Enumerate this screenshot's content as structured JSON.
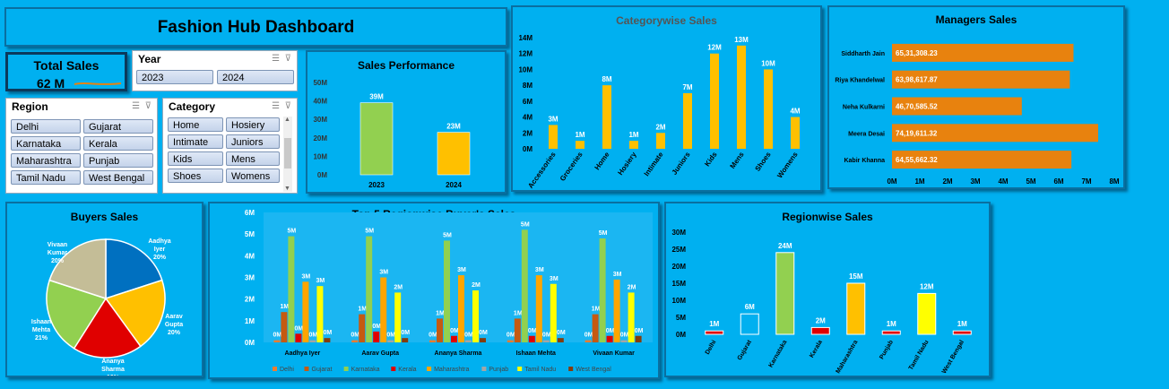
{
  "dashboard": {
    "title": "Fashion Hub Dashboard"
  },
  "kpi": {
    "label": "Total Sales",
    "value": "62 M"
  },
  "year_slicer": {
    "header": "Year",
    "items": [
      "2023",
      "2024"
    ]
  },
  "region_slicer": {
    "header": "Region",
    "items": [
      "Delhi",
      "Gujarat",
      "Karnataka",
      "Kerala",
      "Maharashtra",
      "Punjab",
      "Tamil Nadu",
      "West Bengal"
    ]
  },
  "category_slicer": {
    "header": "Category",
    "items": [
      "Home",
      "Hosiery",
      "Intimate",
      "Juniors",
      "Kids",
      "Mens",
      "Shoes",
      "Womens"
    ]
  },
  "colors": {
    "background": "#00B0F0",
    "orange": "#E8820E",
    "gold": "#FFC000",
    "green": "#92D050",
    "red": "#E00000",
    "yellow": "#FFFF00",
    "blue": "#0070C0",
    "khaki": "#C4BD97"
  },
  "chart_data": [
    {
      "id": "sales_performance",
      "type": "bar",
      "title": "Sales Performance",
      "categories": [
        "2023",
        "2024"
      ],
      "values": [
        39,
        23
      ],
      "labels": [
        "39M",
        "23M"
      ],
      "colors": [
        "#92D050",
        "#FFC000"
      ],
      "yticks": [
        "0M",
        "10M",
        "20M",
        "30M",
        "40M",
        "50M"
      ],
      "ylim": [
        0,
        50
      ]
    },
    {
      "id": "categorywise_sales",
      "type": "bar",
      "title": "Categorywise Sales",
      "categories": [
        "Accessories",
        "Groceries",
        "Home",
        "Hosiery",
        "Intimate",
        "Juniors",
        "Kids",
        "Mens",
        "Shoes",
        "Womens"
      ],
      "values": [
        3,
        1,
        8,
        1,
        2,
        7,
        12,
        13,
        10,
        4
      ],
      "labels": [
        "3M",
        "1M",
        "8M",
        "1M",
        "2M",
        "7M",
        "12M",
        "13M",
        "10M",
        "4M"
      ],
      "yticks": [
        "0M",
        "2M",
        "4M",
        "6M",
        "8M",
        "10M",
        "12M",
        "14M"
      ],
      "ylim": [
        0,
        14
      ]
    },
    {
      "id": "managers_sales",
      "type": "bar",
      "orientation": "horizontal",
      "title": "Managers Sales",
      "categories": [
        "Siddharth Jain",
        "Riya Khandelwal",
        "Neha Kulkarni",
        "Meera Desai",
        "Kabir Khanna"
      ],
      "values": [
        6.531,
        6.399,
        4.671,
        7.419,
        6.456
      ],
      "labels": [
        "65,31,308.23",
        "63,98,617.87",
        "46,70,585.52",
        "74,19,611.32",
        "64,55,662.32"
      ],
      "xticks": [
        "0M",
        "1M",
        "2M",
        "3M",
        "4M",
        "5M",
        "6M",
        "7M",
        "8M"
      ],
      "xlim": [
        0,
        8
      ]
    },
    {
      "id": "buyers_sales",
      "type": "pie",
      "title": "Buyers Sales",
      "categories": [
        "Aadhya Iyer",
        "Aarav Gupta",
        "Ananya Sharma",
        "Ishaan Mehta",
        "Vivaan Kumar"
      ],
      "values": [
        20,
        20,
        19,
        21,
        20
      ],
      "labels": [
        "Aadhya Iyer 20%",
        "Aarav Gupta 20%",
        "Ananya Sharma 19%",
        "Ishaan Mehta 21%",
        "Vivaan Kumar 20%"
      ],
      "colors": [
        "#0070C0",
        "#FFC000",
        "#E00000",
        "#92D050",
        "#C4BD97"
      ]
    },
    {
      "id": "top5_regionwise",
      "type": "bar",
      "title": "Top 5 Regionwise Buyer's Sales",
      "categories": [
        "Aadhya Iyer",
        "Aarav Gupta",
        "Ananya Sharma",
        "Ishaan Mehta",
        "Vivaan Kumar"
      ],
      "series": [
        {
          "name": "Delhi",
          "color": "#ED7D31",
          "values": [
            0.1,
            0.1,
            0.1,
            0.1,
            0.1
          ],
          "labels": [
            "0M",
            "0M",
            "0M",
            "0M",
            "0M"
          ]
        },
        {
          "name": "Gujarat",
          "color": "#C55A11",
          "values": [
            1.4,
            1.3,
            1.1,
            1.1,
            1.3
          ],
          "labels": [
            "1M",
            "1M",
            "1M",
            "1M",
            "1M"
          ]
        },
        {
          "name": "Karnataka",
          "color": "#92D050",
          "values": [
            4.9,
            4.9,
            4.7,
            5.2,
            4.8
          ],
          "labels": [
            "5M",
            "5M",
            "5M",
            "5M",
            "5M"
          ]
        },
        {
          "name": "Kerala",
          "color": "#E00000",
          "values": [
            0.4,
            0.5,
            0.3,
            0.3,
            0.3
          ],
          "labels": [
            "0M",
            "0M",
            "0M",
            "0M",
            "0M"
          ]
        },
        {
          "name": "Maharashtra",
          "color": "#FFA500",
          "values": [
            2.8,
            3.0,
            3.1,
            3.1,
            2.9
          ],
          "labels": [
            "3M",
            "3M",
            "3M",
            "3M",
            "3M"
          ]
        },
        {
          "name": "Punjab",
          "color": "#A5A5A5",
          "values": [
            0.1,
            0.1,
            0.1,
            0.1,
            0.1
          ],
          "labels": [
            "0M",
            "0M",
            "0M",
            "0M",
            "0M"
          ]
        },
        {
          "name": "Tamil Nadu",
          "color": "#FFFF00",
          "values": [
            2.6,
            2.3,
            2.4,
            2.7,
            2.3
          ],
          "labels": [
            "3M",
            "2M",
            "2M",
            "3M",
            "2M"
          ]
        },
        {
          "name": "West Bengal",
          "color": "#843C0C",
          "values": [
            0.2,
            0.2,
            0.2,
            0.2,
            0.3
          ],
          "labels": [
            "0M",
            "0M",
            "0M",
            "0M",
            "0M"
          ]
        }
      ],
      "yticks": [
        "0M",
        "1M",
        "2M",
        "3M",
        "4M",
        "5M",
        "6M"
      ],
      "ylim": [
        0,
        6
      ]
    },
    {
      "id": "regionwise_sales",
      "type": "bar",
      "title": "Regionwise Sales",
      "categories": [
        "Delhi",
        "Gujarat",
        "Karnataka",
        "Kerala",
        "Maharashtra",
        "Punjab",
        "Tamil Nadu",
        "West Bengal"
      ],
      "values": [
        1,
        6,
        24,
        2,
        15,
        1,
        12,
        1
      ],
      "labels": [
        "1M",
        "6M",
        "24M",
        "2M",
        "15M",
        "1M",
        "12M",
        "1M"
      ],
      "colors": [
        "#E00000",
        "#00B0F0",
        "#92D050",
        "#E00000",
        "#FFC000",
        "#E00000",
        "#FFFF00",
        "#E00000"
      ],
      "yticks": [
        "0M",
        "5M",
        "10M",
        "15M",
        "20M",
        "25M",
        "30M"
      ],
      "ylim": [
        0,
        30
      ]
    }
  ]
}
